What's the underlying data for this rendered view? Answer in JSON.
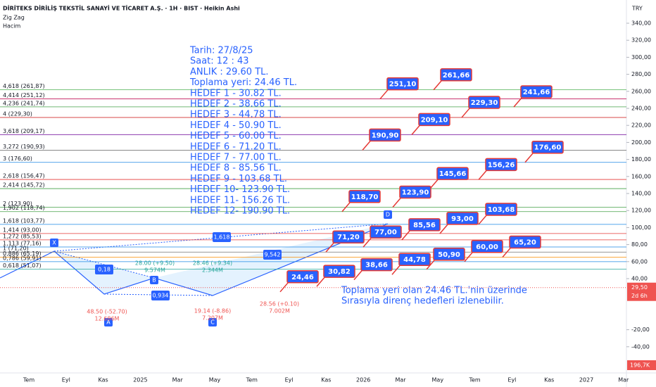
{
  "header": {
    "title": "DİRİTEKS DİRİLİŞ TEKSTİL SANAYİ VE TİCARET A.Ş. · 1H · BIST · Heikin Ashi",
    "indicators": [
      "Zig Zag",
      "Hacim"
    ],
    "currency": "TRY"
  },
  "price_axis": {
    "ticks": [
      {
        "value": 340,
        "label": "340,00"
      },
      {
        "value": 320,
        "label": "320,00"
      },
      {
        "value": 300,
        "label": "300,00"
      },
      {
        "value": 280,
        "label": "280,00"
      },
      {
        "value": 260,
        "label": "260,00"
      },
      {
        "value": 240,
        "label": "240,00"
      },
      {
        "value": 220,
        "label": "220,00"
      },
      {
        "value": 200,
        "label": "200,00"
      },
      {
        "value": 180,
        "label": "180,00"
      },
      {
        "value": 160,
        "label": "160,00"
      },
      {
        "value": 140,
        "label": "140,00"
      },
      {
        "value": 120,
        "label": "120,00"
      },
      {
        "value": 100,
        "label": "100,00"
      },
      {
        "value": 80,
        "label": "80,00"
      },
      {
        "value": 60,
        "label": "60,00"
      },
      {
        "value": 40,
        "label": "40,00"
      },
      {
        "value": -20,
        "label": "-20,00"
      },
      {
        "value": -40,
        "label": "-40,00"
      }
    ],
    "current": {
      "value": 29.5,
      "label": "29,50",
      "countdown": "2d 6h"
    },
    "volume": "196,7K"
  },
  "time_axis": [
    "Tem",
    "Eyl",
    "Kas",
    "2025",
    "Mar",
    "May",
    "Tem",
    "Eyl",
    "Kas",
    "2026",
    "Mar",
    "May",
    "Tem",
    "Eyl",
    "Kas",
    "2027",
    "Mar"
  ],
  "info": [
    "Tarih:    27/8/25",
    "Saat:      12 : 43",
    "ANLIK :  29.60 TL.",
    "Toplama yeri: 24.46 TL.",
    "HEDEF  1 - 30.82 TL.",
    "HEDEF  2 - 38.66 TL.",
    "HEDEF  3 - 44.78 TL.",
    "HEDEF  4 - 50.90 TL.",
    "HEDEF  5 - 60.00 TL.",
    "HEDEF  6 - 71.20 TL.",
    "HEDEF  7 - 77.00 TL.",
    "HEDEF  8 - 85.56 TL.",
    "HEDEF  9 - 103.68 TL.",
    "HEDEF 10- 123.90 TL.",
    "HEDEF 11- 156.26 TL.",
    "HEDEF 12- 190.90 TL."
  ],
  "fib_levels": [
    {
      "label": "4,618 (261,87)",
      "value": 261.87,
      "color": "#4caf50"
    },
    {
      "label": "4,414 (251,12)",
      "value": 251.12,
      "color": "#c2185b"
    },
    {
      "label": "4,236 (241,74)",
      "value": 241.74,
      "color": "#43a047"
    },
    {
      "label": "4 (229,30)",
      "value": 229.3,
      "color": "#d32f2f"
    },
    {
      "label": "3,618 (209,17)",
      "value": 209.17,
      "color": "#7b1fa2"
    },
    {
      "label": "3,272 (190,93)",
      "value": 190.93,
      "color": "#616161"
    },
    {
      "label": "3 (176,60)",
      "value": 176.6,
      "color": "#1e88e5"
    },
    {
      "label": "2,618 (156,47)",
      "value": 156.47,
      "color": "#e53935"
    },
    {
      "label": "2,414 (145,72)",
      "value": 145.72,
      "color": "#43a047"
    },
    {
      "label": "2 (123,90)",
      "value": 123.9,
      "color": "#43a047"
    },
    {
      "label": "1,902 (118,74)",
      "value": 118.74,
      "color": "#43a047"
    },
    {
      "label": "1,618 (103,77)",
      "value": 103.77,
      "color": "#1e88e5"
    },
    {
      "label": "1,414 (93,00)",
      "value": 93.0,
      "color": "#e53935"
    },
    {
      "label": "1,272 (85,53)",
      "value": 85.53,
      "color": "#e53935"
    },
    {
      "label": "1,113 (77,16)",
      "value": 77.16,
      "color": "#1e88e5"
    },
    {
      "label": "1 (71,20)",
      "value": 71.2,
      "color": "#757575"
    },
    {
      "label": "0,886 (65,19)",
      "value": 65.19,
      "color": "#fb8c00"
    },
    {
      "label": "0,786 (59,91)",
      "value": 59.91,
      "color": "#1e88e5"
    },
    {
      "label": "0,618 (51,07)",
      "value": 51.07,
      "color": "#26a69a"
    }
  ],
  "callouts": [
    {
      "label": "251,10",
      "value": 251.1
    },
    {
      "label": "261,66",
      "value": 261.66
    },
    {
      "label": "241,66",
      "value": 241.66
    },
    {
      "label": "229,30",
      "value": 229.3
    },
    {
      "label": "209,10",
      "value": 209.1
    },
    {
      "label": "190,90",
      "value": 190.9
    },
    {
      "label": "176,60",
      "value": 176.6
    },
    {
      "label": "156,26",
      "value": 156.26
    },
    {
      "label": "145,66",
      "value": 145.66
    },
    {
      "label": "123,90",
      "value": 123.9
    },
    {
      "label": "118,70",
      "value": 118.7
    },
    {
      "label": "103,68",
      "value": 103.68
    },
    {
      "label": "93,00",
      "value": 93.0
    },
    {
      "label": "85,56",
      "value": 85.56
    },
    {
      "label": "77,00",
      "value": 77.0
    },
    {
      "label": "71,20",
      "value": 71.2
    },
    {
      "label": "65,20",
      "value": 65.2
    },
    {
      "label": "60,00",
      "value": 60.0
    },
    {
      "label": "50,90",
      "value": 50.9
    },
    {
      "label": "44,78",
      "value": 44.78
    },
    {
      "label": "38,66",
      "value": 38.66
    },
    {
      "label": "30,82",
      "value": 30.82
    },
    {
      "label": "24,46",
      "value": 24.46
    }
  ],
  "pivots": [
    "X",
    "A",
    "B",
    "C",
    "D"
  ],
  "ratios": [
    "0,18",
    "0,934",
    "1,618",
    "9,542"
  ],
  "pivot_notes": [
    [
      "48.50 (-52.70)",
      "12.686M"
    ],
    [
      "28.00 (+9.50)",
      "9.574M"
    ],
    [
      "19.14 (-8.86)",
      "7.207M"
    ],
    [
      "28.46 (+9.34)",
      "2.344M"
    ],
    [
      "28.56 (+0.10)",
      "7.002M"
    ]
  ],
  "footnote": [
    "Toplama yeri olan 24.46 TL.'nin üzerinde",
    "Sırasıyla direnç hedefleri izlenebilir."
  ]
}
